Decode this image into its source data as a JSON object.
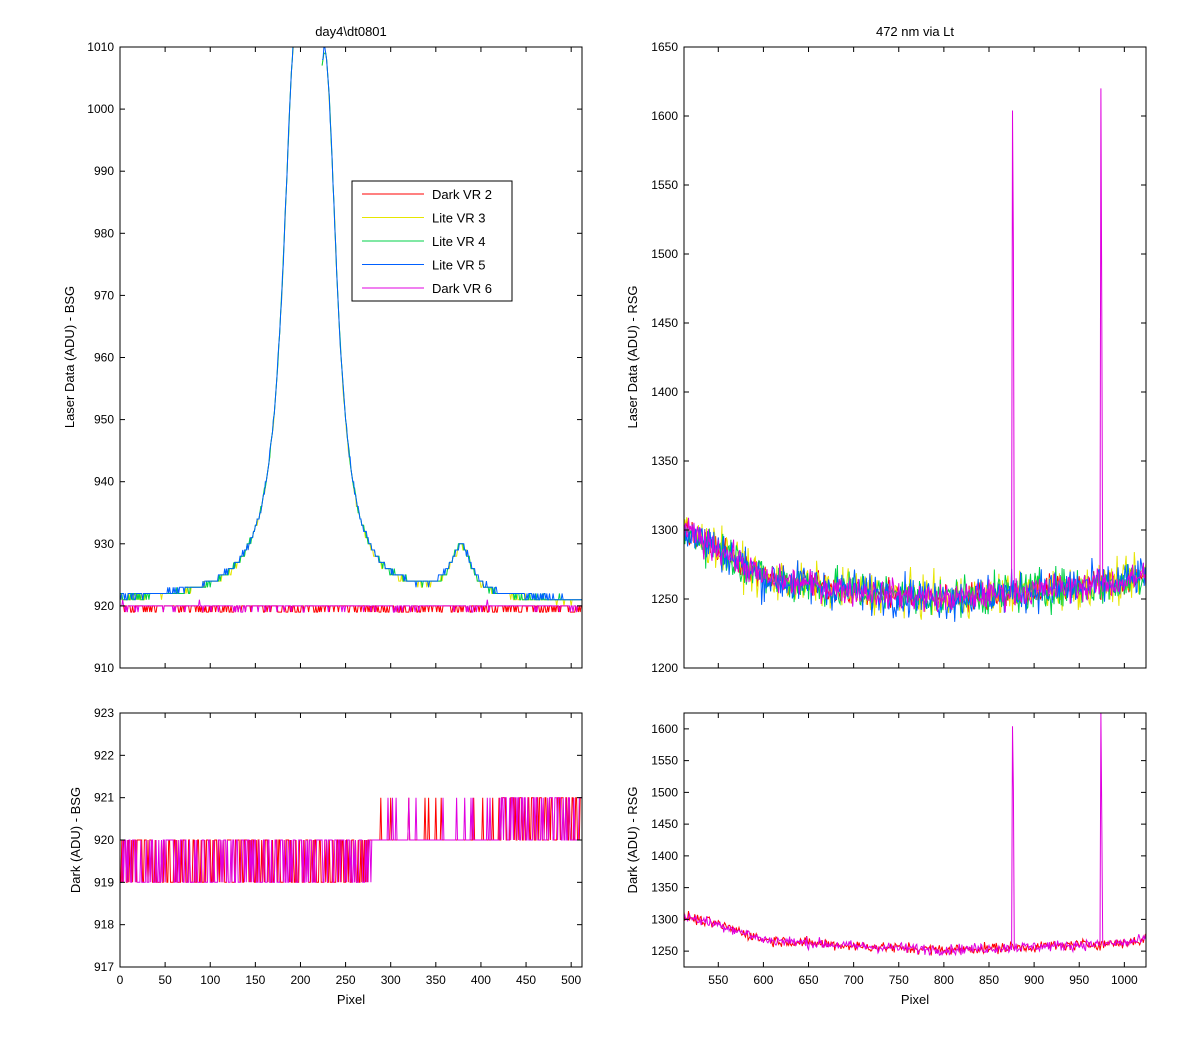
{
  "chart_data": [
    {
      "id": "tl",
      "type": "line",
      "title": "day4\\dt0801",
      "xlabel": "",
      "ylabel": "Laser Data (ADU) - BSG",
      "xlim": [
        0,
        512
      ],
      "ylim": [
        910,
        1010
      ],
      "xticks": [
        0,
        50,
        100,
        150,
        200,
        250,
        300,
        350,
        400,
        450,
        500
      ],
      "yticks": [
        910,
        920,
        930,
        940,
        950,
        960,
        970,
        980,
        990,
        1000,
        1010
      ],
      "show_xtick_labels": false,
      "legend": {
        "position": "upper-middle",
        "entries": [
          "Dark VR 2",
          "Lite VR 3",
          "Lite VR 4",
          "Lite VR 5",
          "Dark VR 6"
        ]
      },
      "series": [
        {
          "name": "Dark VR 2",
          "color": "#ff0000",
          "kind": "dark",
          "base": 919.6,
          "noise": 0.5
        },
        {
          "name": "Lite VR 3",
          "color": "#e6e600",
          "kind": "lorentz"
        },
        {
          "name": "Lite VR 4",
          "color": "#00d24a",
          "kind": "lorentz"
        },
        {
          "name": "Lite VR 5",
          "color": "#0060ff",
          "kind": "lorentz"
        },
        {
          "name": "Dark VR 6",
          "color": "#e000e0",
          "kind": "dark",
          "base": 919.8,
          "noise": 0.5
        }
      ],
      "profile": {
        "baseline": 920.5,
        "peaks": [
          {
            "center": 194,
            "height": 80,
            "width": 32
          },
          {
            "center": 228,
            "height": 74,
            "width": 30
          },
          {
            "center": 378,
            "height": 8,
            "width": 28
          }
        ],
        "dip": {
          "from": 196,
          "to": 224
        }
      }
    },
    {
      "id": "tr",
      "type": "line",
      "title": "472 nm via Lt",
      "xlabel": "",
      "ylabel": "Laser Data (ADU) - RSG",
      "xlim": [
        512,
        1024
      ],
      "ylim": [
        1200,
        1650
      ],
      "xticks": [
        550,
        600,
        650,
        700,
        750,
        800,
        850,
        900,
        950,
        1000
      ],
      "yticks": [
        1200,
        1250,
        1300,
        1350,
        1400,
        1450,
        1500,
        1550,
        1600,
        1650
      ],
      "show_xtick_labels": false,
      "series": [
        {
          "name": "Dark VR 2",
          "color": "#ff0000",
          "kind": "rsg",
          "noise": 10
        },
        {
          "name": "Lite VR 3",
          "color": "#e6e600",
          "kind": "rsg",
          "noise": 14
        },
        {
          "name": "Lite VR 4",
          "color": "#00d24a",
          "kind": "rsg",
          "noise": 14
        },
        {
          "name": "Lite VR 5",
          "color": "#0060ff",
          "kind": "rsg",
          "noise": 14
        },
        {
          "name": "Dark VR 6",
          "color": "#e000e0",
          "kind": "rsg",
          "noise": 10
        }
      ],
      "baseline_curve": [
        [
          512,
          1300
        ],
        [
          560,
          1283
        ],
        [
          600,
          1265
        ],
        [
          700,
          1256
        ],
        [
          800,
          1250
        ],
        [
          900,
          1256
        ],
        [
          1000,
          1262
        ],
        [
          1024,
          1268
        ]
      ],
      "spikes": [
        {
          "x": 876,
          "peak": 1604,
          "secondary": 1505
        },
        {
          "x": 974,
          "peak": 1620,
          "secondary": 1455
        }
      ]
    },
    {
      "id": "bl",
      "type": "line",
      "title": "",
      "xlabel": "Pixel",
      "ylabel": "Dark (ADU) - BSG",
      "xlim": [
        0,
        512
      ],
      "ylim": [
        917,
        923
      ],
      "xticks": [
        0,
        50,
        100,
        150,
        200,
        250,
        300,
        350,
        400,
        450,
        500
      ],
      "yticks": [
        917,
        918,
        919,
        920,
        921,
        922,
        923
      ],
      "show_xtick_labels": true,
      "series": [
        {
          "name": "Dark VR 2",
          "color": "#ff0000",
          "kind": "dark-step"
        },
        {
          "name": "Dark VR 6",
          "color": "#e000e0",
          "kind": "dark-step"
        }
      ]
    },
    {
      "id": "br",
      "type": "line",
      "title": "",
      "xlabel": "Pixel",
      "ylabel": "Dark (ADU) - RSG",
      "xlim": [
        512,
        1024
      ],
      "ylim": [
        1225,
        1625
      ],
      "xticks": [
        550,
        600,
        650,
        700,
        750,
        800,
        850,
        900,
        950,
        1000
      ],
      "yticks": [
        1250,
        1300,
        1350,
        1400,
        1450,
        1500,
        1550,
        1600
      ],
      "show_xtick_labels": true,
      "series": [
        {
          "name": "Dark VR 2",
          "color": "#ff0000",
          "kind": "rsg",
          "noise": 8
        },
        {
          "name": "Dark VR 6",
          "color": "#e000e0",
          "kind": "rsg",
          "noise": 8
        }
      ],
      "baseline_curve": [
        [
          512,
          1305
        ],
        [
          560,
          1288
        ],
        [
          600,
          1268
        ],
        [
          700,
          1258
        ],
        [
          800,
          1252
        ],
        [
          900,
          1257
        ],
        [
          1000,
          1263
        ],
        [
          1024,
          1268
        ]
      ],
      "spikes": [
        {
          "x": 876,
          "peak": 1604,
          "secondary": 1505
        },
        {
          "x": 974,
          "peak": 1625,
          "secondary": 1455
        }
      ]
    }
  ]
}
